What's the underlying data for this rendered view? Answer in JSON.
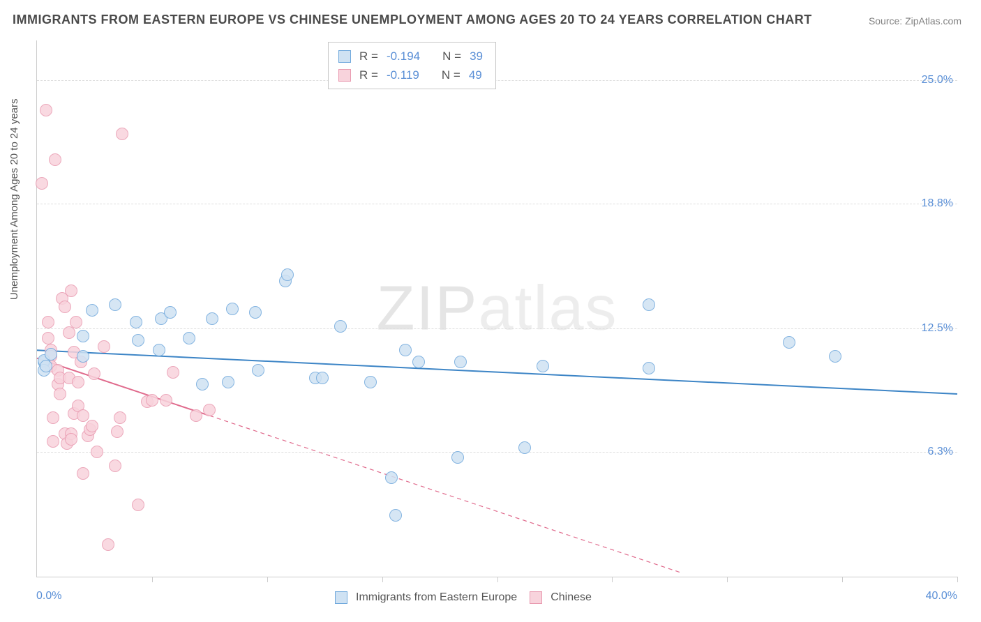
{
  "title": "IMMIGRANTS FROM EASTERN EUROPE VS CHINESE UNEMPLOYMENT AMONG AGES 20 TO 24 YEARS CORRELATION CHART",
  "source": "Source: ZipAtlas.com",
  "ylabel": "Unemployment Among Ages 20 to 24 years",
  "watermark_a": "ZIP",
  "watermark_b": "atlas",
  "chart": {
    "type": "scatter",
    "xlim": [
      0,
      40
    ],
    "ylim": [
      0,
      27
    ],
    "x_tick_positions": [
      0,
      5,
      10,
      15,
      20,
      25,
      30,
      35,
      40
    ],
    "y_gridlines": [
      6.3,
      12.5,
      18.8,
      25.0
    ],
    "y_tick_labels": [
      "6.3%",
      "12.5%",
      "18.8%",
      "25.0%"
    ],
    "x_min_label": "0.0%",
    "x_max_label": "40.0%",
    "background_color": "#ffffff",
    "grid_color": "#dddddd",
    "axis_color": "#cccccc",
    "label_color": "#5a8fd6",
    "point_radius": 9,
    "point_border_width": 1.5,
    "line_width": 2
  },
  "series": {
    "blue": {
      "label": "Immigrants from Eastern Europe",
      "fill": "#cfe2f3",
      "stroke": "#6fa8dc",
      "line_color": "#3d85c6",
      "R_label": "R =",
      "R": "-0.194",
      "N_label": "N =",
      "N": "39",
      "trend": {
        "x1": 0,
        "y1": 11.4,
        "x2": 40,
        "y2": 9.2,
        "solid_to_x": 40
      },
      "points": [
        [
          0.3,
          10.8
        ],
        [
          0.3,
          10.9
        ],
        [
          0.3,
          10.4
        ],
        [
          0.6,
          11.2
        ],
        [
          2.0,
          11.1
        ],
        [
          2.0,
          12.1
        ],
        [
          2.4,
          13.4
        ],
        [
          3.4,
          13.7
        ],
        [
          4.4,
          11.9
        ],
        [
          4.3,
          12.8
        ],
        [
          5.4,
          13.0
        ],
        [
          5.3,
          11.4
        ],
        [
          5.8,
          13.3
        ],
        [
          6.6,
          12.0
        ],
        [
          7.2,
          9.7
        ],
        [
          7.6,
          13.0
        ],
        [
          8.3,
          9.8
        ],
        [
          8.5,
          13.5
        ],
        [
          9.6,
          10.4
        ],
        [
          9.5,
          13.3
        ],
        [
          10.8,
          14.9
        ],
        [
          10.9,
          15.2
        ],
        [
          12.1,
          10.0
        ],
        [
          12.4,
          10.0
        ],
        [
          13.2,
          12.6
        ],
        [
          14.5,
          9.8
        ],
        [
          15.6,
          3.1
        ],
        [
          15.4,
          5.0
        ],
        [
          16.0,
          11.4
        ],
        [
          16.6,
          10.8
        ],
        [
          18.3,
          6.0
        ],
        [
          18.4,
          10.8
        ],
        [
          21.2,
          6.5
        ],
        [
          22.0,
          10.6
        ],
        [
          26.6,
          13.7
        ],
        [
          26.6,
          10.5
        ],
        [
          32.7,
          11.8
        ],
        [
          34.7,
          11.1
        ],
        [
          0.4,
          10.6
        ]
      ]
    },
    "pink": {
      "label": "Chinese",
      "fill": "#f8d3dc",
      "stroke": "#e99ab0",
      "line_color": "#e06a8c",
      "R_label": "R =",
      "R": "-0.119",
      "N_label": "N =",
      "N": "49",
      "trend": {
        "x1": 0,
        "y1": 11.0,
        "x2": 28,
        "y2": 0.2,
        "solid_to_x": 7.5
      },
      "points": [
        [
          0.2,
          19.8
        ],
        [
          0.4,
          23.5
        ],
        [
          0.8,
          21.0
        ],
        [
          1.5,
          14.4
        ],
        [
          3.7,
          22.3
        ],
        [
          0.5,
          12.8
        ],
        [
          0.5,
          12.0
        ],
        [
          0.6,
          11.4
        ],
        [
          0.6,
          11.1
        ],
        [
          0.6,
          10.6
        ],
        [
          0.7,
          8.0
        ],
        [
          0.7,
          6.8
        ],
        [
          0.9,
          10.4
        ],
        [
          0.9,
          9.7
        ],
        [
          1.0,
          10.0
        ],
        [
          1.0,
          9.2
        ],
        [
          1.1,
          14.0
        ],
        [
          1.2,
          13.6
        ],
        [
          1.2,
          7.2
        ],
        [
          1.3,
          6.7
        ],
        [
          1.4,
          12.3
        ],
        [
          1.4,
          10.0
        ],
        [
          1.5,
          7.2
        ],
        [
          1.5,
          6.9
        ],
        [
          1.6,
          11.3
        ],
        [
          1.6,
          8.2
        ],
        [
          1.7,
          12.8
        ],
        [
          1.8,
          8.6
        ],
        [
          1.8,
          9.8
        ],
        [
          1.9,
          10.8
        ],
        [
          2.0,
          8.1
        ],
        [
          2.0,
          5.2
        ],
        [
          2.2,
          7.1
        ],
        [
          2.3,
          7.4
        ],
        [
          2.4,
          7.6
        ],
        [
          2.5,
          10.2
        ],
        [
          2.6,
          6.3
        ],
        [
          2.9,
          11.6
        ],
        [
          3.1,
          1.6
        ],
        [
          3.4,
          5.6
        ],
        [
          3.5,
          7.3
        ],
        [
          3.6,
          8.0
        ],
        [
          4.4,
          3.6
        ],
        [
          4.8,
          8.8
        ],
        [
          5.0,
          8.9
        ],
        [
          5.6,
          8.9
        ],
        [
          5.9,
          10.3
        ],
        [
          6.9,
          8.1
        ],
        [
          7.5,
          8.4
        ]
      ]
    }
  }
}
